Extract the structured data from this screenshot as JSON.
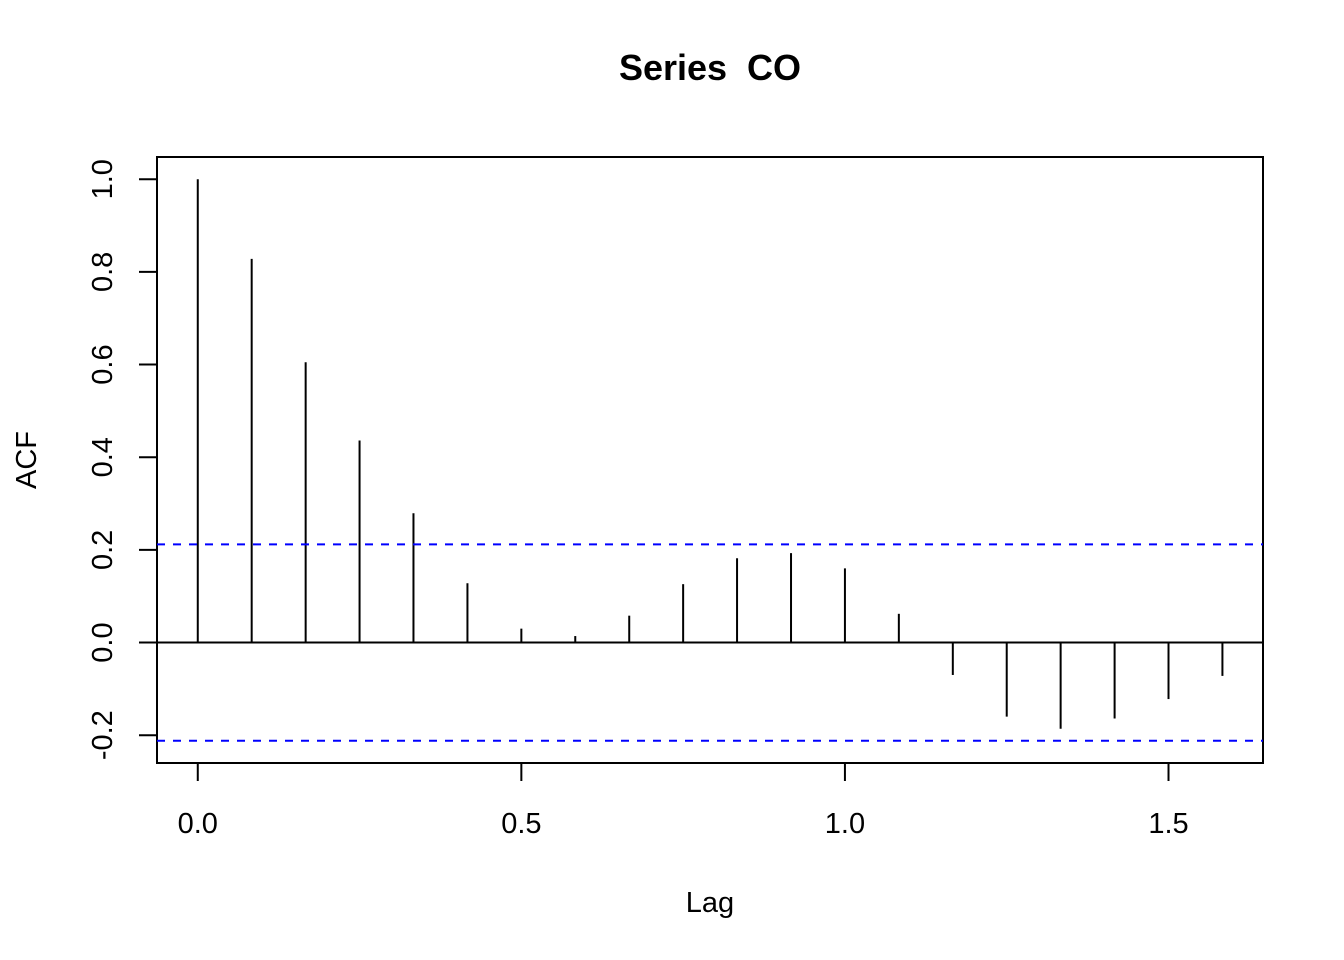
{
  "chart_data": {
    "type": "bar",
    "title": "Series  CO",
    "xlabel": "Lag",
    "ylabel": "ACF",
    "xlim": [
      -0.063,
      1.646
    ],
    "ylim": [
      -0.26,
      1.048
    ],
    "x_ticks": [
      0.0,
      0.5,
      1.0,
      1.5
    ],
    "x_tick_labels": [
      "0.0",
      "0.5",
      "1.0",
      "1.5"
    ],
    "y_ticks": [
      -0.2,
      0.0,
      0.2,
      0.4,
      0.6,
      0.8,
      1.0
    ],
    "y_tick_labels": [
      "-0.2",
      "0.0",
      "0.2",
      "0.4",
      "0.6",
      "0.8",
      "1.0"
    ],
    "grid": false,
    "confidence_bound": 0.212,
    "confidence_color": "#0000ff",
    "bar_color": "#000000",
    "series": [
      {
        "lags": [
          0.0,
          0.0833,
          0.1667,
          0.25,
          0.3333,
          0.4167,
          0.5,
          0.5833,
          0.6667,
          0.75,
          0.8333,
          0.9167,
          1.0,
          1.0833,
          1.1667,
          1.25,
          1.3333,
          1.4167,
          1.5,
          1.5833
        ],
        "values": [
          1.0,
          0.828,
          0.605,
          0.436,
          0.279,
          0.128,
          0.03,
          0.014,
          0.058,
          0.126,
          0.182,
          0.193,
          0.16,
          0.062,
          -0.07,
          -0.16,
          -0.186,
          -0.164,
          -0.122,
          -0.072
        ]
      }
    ]
  }
}
